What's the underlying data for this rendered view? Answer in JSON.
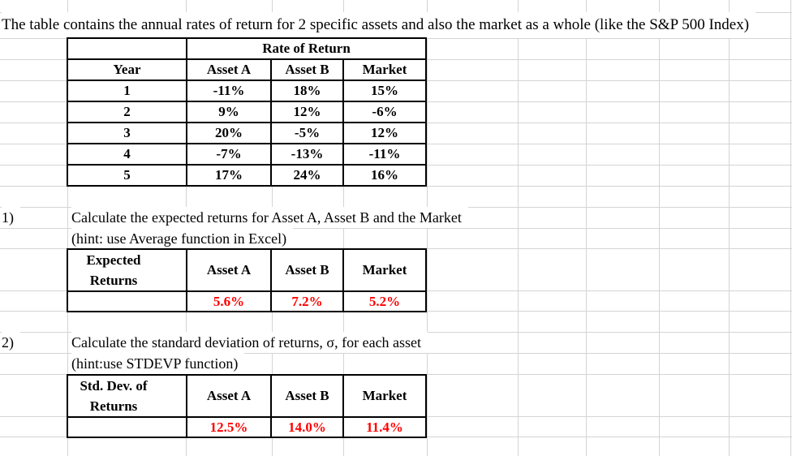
{
  "title": "The table contains the annual rates of return for 2 specific assets and also the market as a whole (like the S&P 500 Index)",
  "returns_table": {
    "group_header": "Rate of Return",
    "columns": [
      "Year",
      "Asset A",
      "Asset B",
      "Market"
    ],
    "rows": [
      [
        "1",
        "-11%",
        "18%",
        "15%"
      ],
      [
        "2",
        "9%",
        "12%",
        "-6%"
      ],
      [
        "3",
        "20%",
        "-5%",
        "12%"
      ],
      [
        "4",
        "-7%",
        "-13%",
        "-11%"
      ],
      [
        "5",
        "17%",
        "24%",
        "16%"
      ]
    ]
  },
  "section1": {
    "label": "1)",
    "instruction": "Calculate the expected returns for Asset A, Asset B and the Market",
    "hint": "(hint: use Average function in Excel)",
    "table": {
      "row_header": "Expected Returns",
      "columns": [
        "Asset A",
        "Asset B",
        "Market"
      ],
      "values": [
        "5.6%",
        "7.2%",
        "5.2%"
      ]
    }
  },
  "section2": {
    "label": "2)",
    "instruction": "Calculate the standard deviation of returns, σ, for each asset",
    "hint": "(hint:use STDEVP function)",
    "table": {
      "row_header": "Std. Dev. of Returns",
      "columns": [
        "Asset A",
        "Asset B",
        "Market"
      ],
      "values": [
        "12.5%",
        "14.0%",
        "11.4%"
      ]
    }
  },
  "colors": {
    "value_text": "#ff0000",
    "gridline": "#d4d4d4",
    "table_border": "#000000"
  }
}
